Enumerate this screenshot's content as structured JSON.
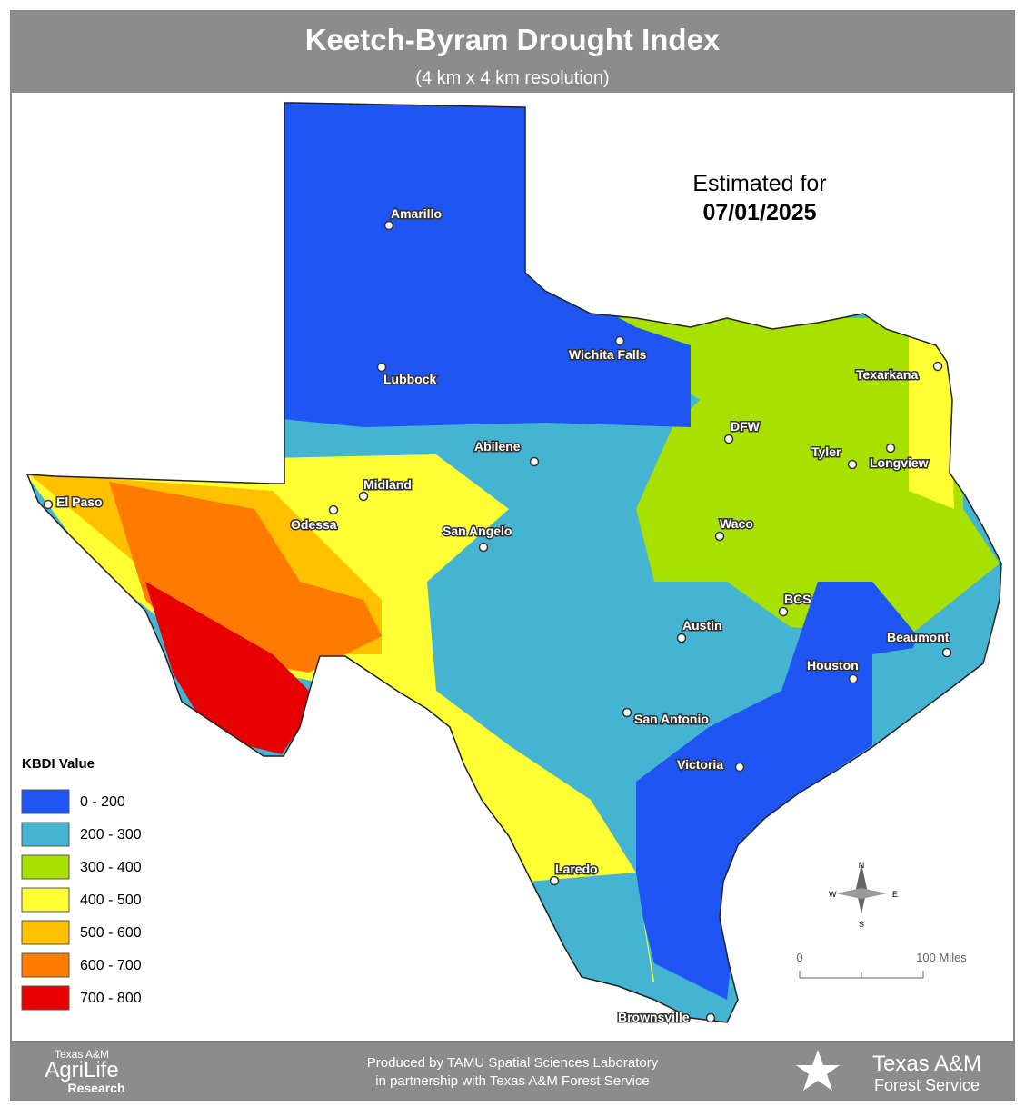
{
  "header": {
    "title": "Keetch-Byram Drought Index",
    "subtitle": "(4 km x 4 km resolution)"
  },
  "estimate": {
    "label": "Estimated for",
    "date": "07/01/2025"
  },
  "cities": [
    "Amarillo",
    "Wichita Falls",
    "Lubbock",
    "Texarkana",
    "DFW",
    "Tyler",
    "Longview",
    "Abilene",
    "Midland",
    "El Paso",
    "Odessa",
    "San Angelo",
    "Waco",
    "BCS",
    "Austin",
    "Beaumont",
    "Houston",
    "San Antonio",
    "Victoria",
    "Laredo",
    "Brownsville"
  ],
  "legend": {
    "title": "KBDI Value",
    "items": [
      {
        "label": "0 - 200",
        "color": "#1f55f2"
      },
      {
        "label": "200 - 300",
        "color": "#45b4d3"
      },
      {
        "label": "300 - 400",
        "color": "#a8e000"
      },
      {
        "label": "400 - 500",
        "color": "#ffff33"
      },
      {
        "label": "500 - 600",
        "color": "#ffc000"
      },
      {
        "label": "600 - 700",
        "color": "#ff7a00"
      },
      {
        "label": "700 - 800",
        "color": "#e80000"
      }
    ]
  },
  "compass": {
    "north": "N",
    "south": "S",
    "east": "E",
    "west": "W"
  },
  "scale": {
    "start": "0",
    "end": "100 Miles"
  },
  "footer": {
    "left_logo": {
      "line1": "Texas A&M",
      "line2": "AgriLife",
      "line3": "Research"
    },
    "credit": {
      "line1": "Produced by TAMU Spatial Sciences Laboratory",
      "line2": "in partnership with Texas A&M Forest Service"
    },
    "right_logo": {
      "line1": "Texas A&M",
      "line2": "Forest Service"
    }
  }
}
